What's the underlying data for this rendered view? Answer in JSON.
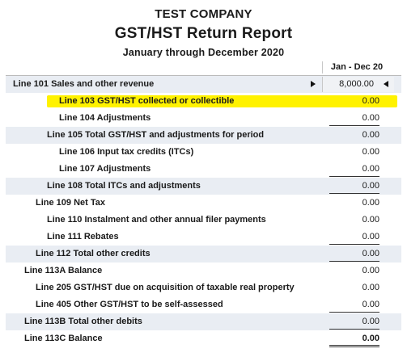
{
  "header": {
    "company": "TEST COMPANY",
    "title": "GST/HST Return Report",
    "period": "January through December 2020"
  },
  "columns": [
    "Jan - Dec 20"
  ],
  "rows": [
    {
      "label": "Line 101 Sales and other revenue",
      "value": "8,000.00"
    },
    {
      "label": "Line 103 GST/HST collected or collectible",
      "value": "0.00"
    },
    {
      "label": "Line 104 Adjustments",
      "value": "0.00"
    },
    {
      "label": "Line 105 Total GST/HST and adjustments for period",
      "value": "0.00"
    },
    {
      "label": "Line 106 Input tax credits (ITCs)",
      "value": "0.00"
    },
    {
      "label": "Line 107 Adjustments",
      "value": "0.00"
    },
    {
      "label": "Line 108 Total ITCs and adjustments",
      "value": "0.00"
    },
    {
      "label": "Line 109 Net Tax",
      "value": "0.00"
    },
    {
      "label": "Line 110 Instalment and other annual filer payments",
      "value": "0.00"
    },
    {
      "label": "Line 111 Rebates",
      "value": "0.00"
    },
    {
      "label": "Line 112 Total other credits",
      "value": "0.00"
    },
    {
      "label": "Line 113A Balance",
      "value": "0.00"
    },
    {
      "label": "Line 205 GST/HST due on acquisition of taxable real property",
      "value": "0.00"
    },
    {
      "label": "Line 405 Other GST/HST to be self-assessed",
      "value": "0.00"
    },
    {
      "label": "Line 113B Total other debits",
      "value": "0.00"
    },
    {
      "label": "Line 113C Balance",
      "value": "0.00"
    }
  ],
  "colors": {
    "highlight": "#fff200",
    "alt_row": "#e9edf3"
  },
  "icons": {
    "expand": "triangle-right-icon",
    "collapse": "triangle-left-icon"
  }
}
